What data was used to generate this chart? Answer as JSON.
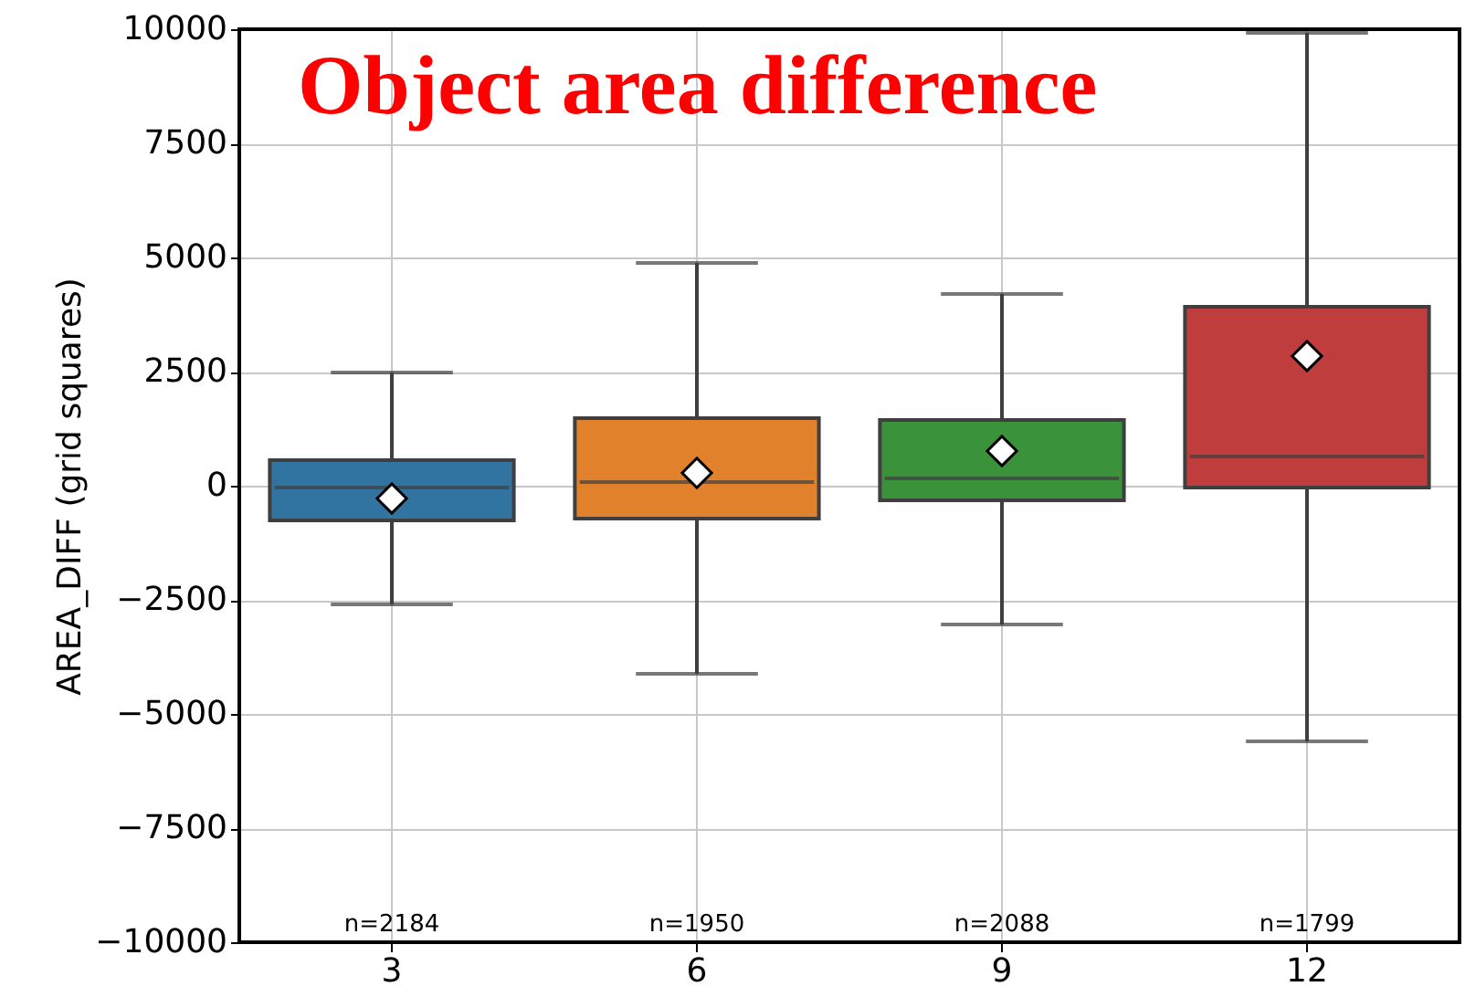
{
  "chart_data": {
    "type": "box",
    "title": "Object area difference",
    "ylabel": "AREA_DIFF (grid squares)",
    "categories": [
      "3",
      "6",
      "9",
      "12"
    ],
    "colors": [
      "#3274a1",
      "#e1812c",
      "#3a923a",
      "#c03d3e"
    ],
    "boxes": [
      {
        "low": -2600,
        "q1": -760,
        "median": -40,
        "q3": 560,
        "high": 2480,
        "mean": -280
      },
      {
        "low": -4120,
        "q1": -720,
        "median": 80,
        "q3": 1480,
        "high": 4880,
        "mean": 280
      },
      {
        "low": -3040,
        "q1": -320,
        "median": 160,
        "q3": 1440,
        "high": 4200,
        "mean": 760
      },
      {
        "low": -5600,
        "q1": -40,
        "median": 640,
        "q3": 3920,
        "high": 9920,
        "mean": 2840
      }
    ],
    "ylim": [
      -10000,
      10000
    ],
    "yticks": [
      -10000,
      -7500,
      -5000,
      -2500,
      0,
      2500,
      5000,
      7500,
      10000
    ],
    "grid": true,
    "marker": "diamond",
    "annotations": [
      "n=2184",
      "n=1950",
      "n=2088",
      "n=1799"
    ]
  }
}
